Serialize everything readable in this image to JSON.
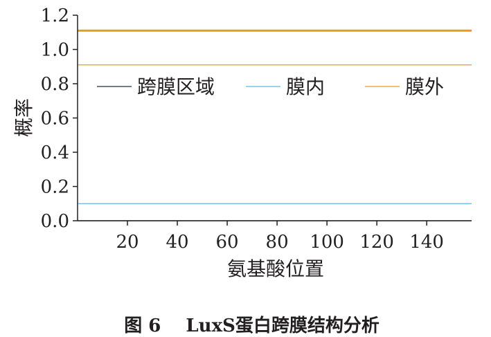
{
  "chart_data": {
    "type": "line",
    "xlabel": "氨基酸位置",
    "ylabel": "概率",
    "xlim": [
      0,
      158
    ],
    "ylim": [
      0,
      1.2
    ],
    "xticks": [
      20,
      40,
      60,
      80,
      100,
      120,
      140
    ],
    "yticks": [
      "0.0",
      "0.2",
      "0.4",
      "0.6",
      "0.8",
      "1.0",
      "1.2"
    ],
    "grid": false,
    "legend_position": "top",
    "series": [
      {
        "name": "跨膜区域",
        "color": "#1f2a44",
        "x": [
          0,
          158
        ],
        "y": [
          0,
          0
        ]
      },
      {
        "name": "膜内",
        "color": "#5bb8e0",
        "x": [
          0,
          158
        ],
        "y": [
          0.1,
          0.1
        ]
      },
      {
        "name": "膜外",
        "color": "#e89a1a",
        "x": [
          0,
          158
        ],
        "y": [
          0.91,
          0.91
        ]
      }
    ],
    "reference_line": {
      "color": "#e89a1a",
      "y": 1.11
    }
  },
  "caption": {
    "figure_label": "图 6",
    "title": "LuxS蛋白跨膜结构分析"
  }
}
